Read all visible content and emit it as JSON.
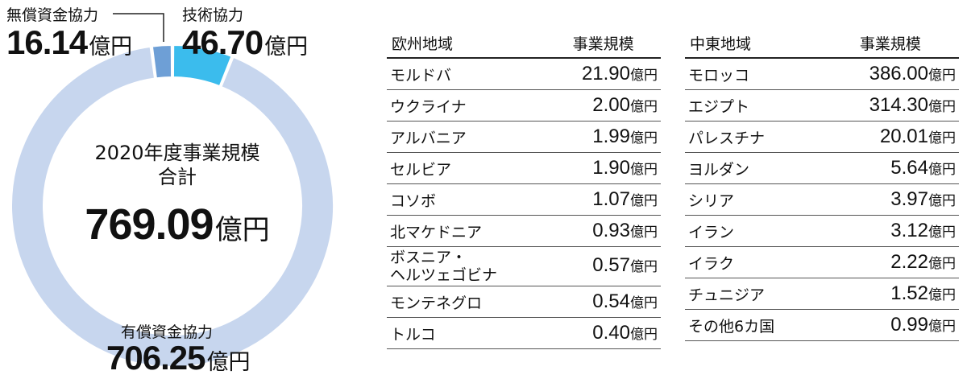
{
  "chart_data": {
    "type": "pie",
    "style": "donut",
    "center": {
      "title": "2020年度事業規模",
      "subtitle": "合計",
      "value": "769.09",
      "unit": "億円"
    },
    "slices": [
      {
        "name": "有償資金協力",
        "value": 706.25,
        "value_label": "706.25",
        "unit": "億円",
        "color": "#c7d6ee"
      },
      {
        "name": "無償資金協力",
        "value": 16.14,
        "value_label": "16.14",
        "unit": "億円",
        "color": "#6e9fd6"
      },
      {
        "name": "技術協力",
        "value": 46.7,
        "value_label": "46.70",
        "unit": "億円",
        "color": "#3bbced"
      }
    ]
  },
  "tables": {
    "europe": {
      "header": {
        "region": "欧州地域",
        "scale": "事業規模"
      },
      "rows": [
        {
          "country": "モルドバ",
          "value": "21.90"
        },
        {
          "country": "ウクライナ",
          "value": "2.00"
        },
        {
          "country": "アルバニア",
          "value": "1.99"
        },
        {
          "country": "セルビア",
          "value": "1.90"
        },
        {
          "country": "コソボ",
          "value": "1.07"
        },
        {
          "country": "北マケドニア",
          "value": "0.93"
        },
        {
          "country": "ボスニア・\nヘルツェゴビナ",
          "value": "0.57"
        },
        {
          "country": "モンテネグロ",
          "value": "0.54"
        },
        {
          "country": "トルコ",
          "value": "0.40"
        }
      ]
    },
    "middle_east": {
      "header": {
        "region": "中東地域",
        "scale": "事業規模"
      },
      "rows": [
        {
          "country": "モロッコ",
          "value": "386.00"
        },
        {
          "country": "エジプト",
          "value": "314.30"
        },
        {
          "country": "パレスチナ",
          "value": "20.01"
        },
        {
          "country": "ヨルダン",
          "value": "5.64"
        },
        {
          "country": "シリア",
          "value": "3.97"
        },
        {
          "country": "イラン",
          "value": "3.12"
        },
        {
          "country": "イラク",
          "value": "2.22"
        },
        {
          "country": "チュニジア",
          "value": "1.52"
        },
        {
          "country": "その他6カ国",
          "value": "0.99"
        }
      ]
    },
    "unit": "億円"
  }
}
